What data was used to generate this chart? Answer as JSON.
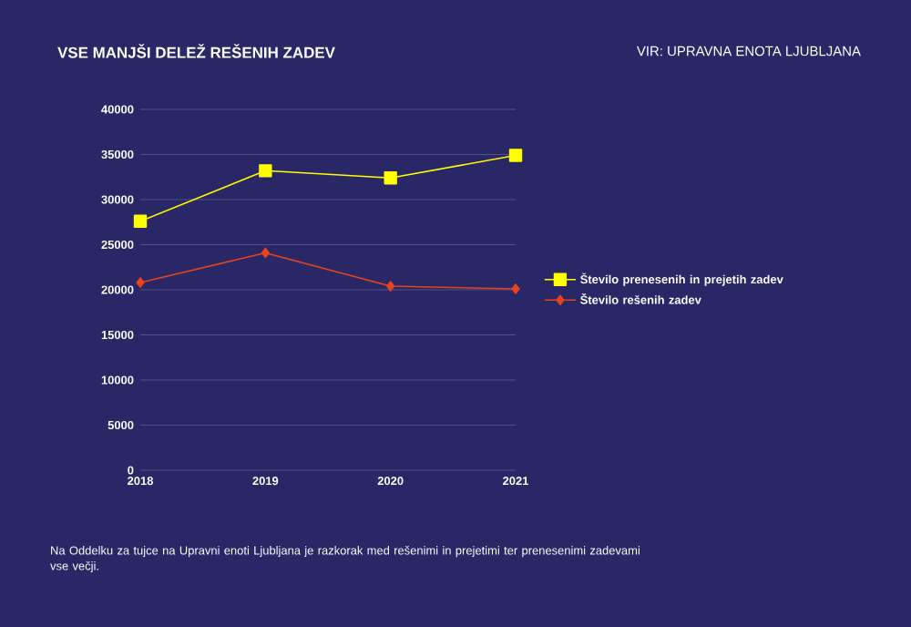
{
  "chart_data": {
    "type": "line",
    "title": "VSE MANJŠI DELEŽ REŠENIH ZADEV",
    "annotations": [
      "VIR: UPRAVNA ENOTA LJUBLJANA",
      "Na Oddelku za tujce na Upravni enoti Ljubljana je razkorak med rešenimi in prejetimi ter prenesenimi zadevami vse večji."
    ],
    "x": [
      2018,
      2019,
      2020,
      2021
    ],
    "xlim": [
      2018,
      2021
    ],
    "xticks": [
      2018,
      2019,
      2020,
      2021
    ],
    "ylim": [
      0,
      40000
    ],
    "yticks": [
      0,
      5000,
      10000,
      15000,
      20000,
      25000,
      30000,
      35000,
      40000
    ],
    "grid": "y",
    "legend": "right",
    "series": [
      {
        "name": "Število prenesenih in prejetih zadev",
        "color": "#ffff00",
        "marker": "square",
        "values": [
          27600,
          33200,
          32400,
          34900
        ]
      },
      {
        "name": "Število rešenih zadev",
        "color": "#e8431f",
        "marker": "diamond",
        "values": [
          20800,
          24100,
          20400,
          20100
        ]
      }
    ]
  }
}
